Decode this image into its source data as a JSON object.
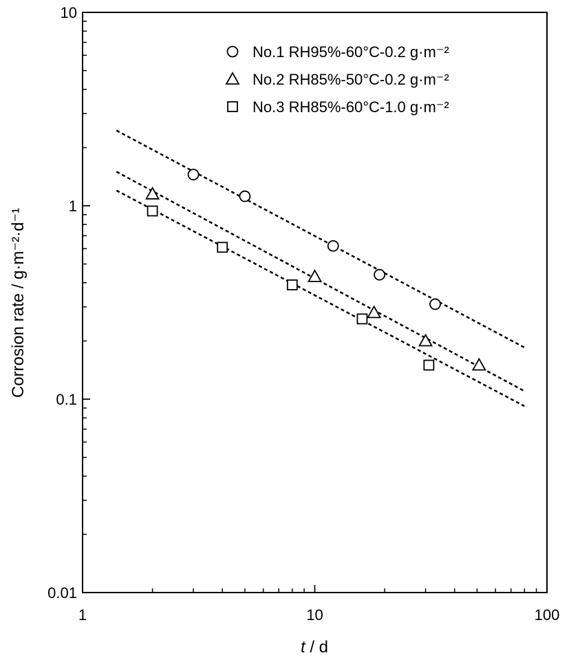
{
  "chart_data": {
    "type": "scatter",
    "x_scale": "log",
    "y_scale": "log",
    "xlim": [
      1,
      100
    ],
    "ylim": [
      0.01,
      10
    ],
    "x_ticks": [
      {
        "value": 1,
        "label": "1"
      },
      {
        "value": 10,
        "label": "10"
      },
      {
        "value": 100,
        "label": "100"
      }
    ],
    "y_ticks": [
      {
        "value": 0.01,
        "label": "0.01"
      },
      {
        "value": 0.1,
        "label": "0.1"
      },
      {
        "value": 1,
        "label": "1"
      },
      {
        "value": 10,
        "label": "10"
      }
    ],
    "xlabel": {
      "italic": "t",
      "rest": " / d"
    },
    "ylabel": "Corrosion rate / g·m⁻²·d⁻¹",
    "grid": false,
    "legend_position": "top-right",
    "series": [
      {
        "name": "No.1 RH95%-60°C-0.2 g·m⁻²",
        "marker": "circle",
        "points": [
          [
            3,
            1.45
          ],
          [
            5,
            1.12
          ],
          [
            12,
            0.62
          ],
          [
            19,
            0.44
          ],
          [
            33,
            0.31
          ]
        ],
        "fit_line": [
          [
            1.4,
            2.45
          ],
          [
            80,
            0.185
          ]
        ]
      },
      {
        "name": "No.2 RH85%-50°C-0.2 g·m⁻²",
        "marker": "triangle",
        "points": [
          [
            2,
            1.15
          ],
          [
            10,
            0.43
          ],
          [
            18,
            0.28
          ],
          [
            30,
            0.2
          ],
          [
            51,
            0.15
          ]
        ],
        "fit_line": [
          [
            1.4,
            1.5
          ],
          [
            80,
            0.11
          ]
        ]
      },
      {
        "name": "No.3 RH85%-60°C-1.0 g·m⁻²",
        "marker": "square",
        "points": [
          [
            2,
            0.94
          ],
          [
            4,
            0.61
          ],
          [
            8,
            0.39
          ],
          [
            16,
            0.26
          ],
          [
            31,
            0.15
          ]
        ],
        "fit_line": [
          [
            1.4,
            1.2
          ],
          [
            80,
            0.092
          ]
        ]
      }
    ]
  }
}
